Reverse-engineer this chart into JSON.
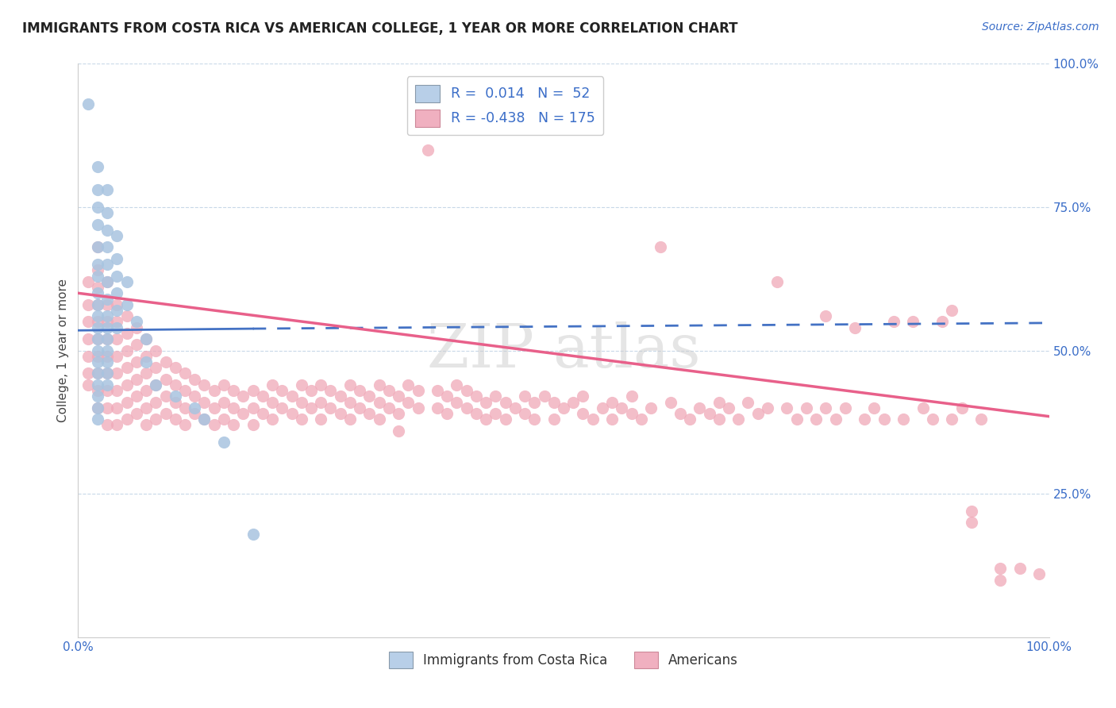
{
  "title": "IMMIGRANTS FROM COSTA RICA VS AMERICAN COLLEGE, 1 YEAR OR MORE CORRELATION CHART",
  "source_text": "Source: ZipAtlas.com",
  "ylabel": "College, 1 year or more",
  "xlim": [
    0.0,
    1.0
  ],
  "ylim": [
    0.0,
    1.0
  ],
  "watermark_text": "ZIPatlas",
  "blue_color": "#a8c4e0",
  "pink_color": "#f0a8b8",
  "blue_line_color": "#4472c4",
  "pink_line_color": "#e8608a",
  "grid_color": "#c8d8e8",
  "background_color": "#ffffff",
  "blue_points": [
    [
      0.01,
      0.93
    ],
    [
      0.02,
      0.82
    ],
    [
      0.02,
      0.78
    ],
    [
      0.02,
      0.75
    ],
    [
      0.02,
      0.72
    ],
    [
      0.02,
      0.68
    ],
    [
      0.02,
      0.65
    ],
    [
      0.02,
      0.63
    ],
    [
      0.02,
      0.6
    ],
    [
      0.02,
      0.58
    ],
    [
      0.02,
      0.56
    ],
    [
      0.02,
      0.54
    ],
    [
      0.02,
      0.52
    ],
    [
      0.02,
      0.5
    ],
    [
      0.02,
      0.48
    ],
    [
      0.02,
      0.46
    ],
    [
      0.02,
      0.44
    ],
    [
      0.02,
      0.42
    ],
    [
      0.02,
      0.4
    ],
    [
      0.02,
      0.38
    ],
    [
      0.03,
      0.78
    ],
    [
      0.03,
      0.74
    ],
    [
      0.03,
      0.71
    ],
    [
      0.03,
      0.68
    ],
    [
      0.03,
      0.65
    ],
    [
      0.03,
      0.62
    ],
    [
      0.03,
      0.59
    ],
    [
      0.03,
      0.56
    ],
    [
      0.03,
      0.54
    ],
    [
      0.03,
      0.52
    ],
    [
      0.03,
      0.5
    ],
    [
      0.03,
      0.48
    ],
    [
      0.03,
      0.46
    ],
    [
      0.03,
      0.44
    ],
    [
      0.04,
      0.7
    ],
    [
      0.04,
      0.66
    ],
    [
      0.04,
      0.63
    ],
    [
      0.04,
      0.6
    ],
    [
      0.04,
      0.57
    ],
    [
      0.04,
      0.54
    ],
    [
      0.05,
      0.62
    ],
    [
      0.05,
      0.58
    ],
    [
      0.06,
      0.55
    ],
    [
      0.07,
      0.52
    ],
    [
      0.07,
      0.48
    ],
    [
      0.08,
      0.44
    ],
    [
      0.1,
      0.42
    ],
    [
      0.12,
      0.4
    ],
    [
      0.13,
      0.38
    ],
    [
      0.15,
      0.34
    ],
    [
      0.18,
      0.18
    ]
  ],
  "pink_points": [
    [
      0.01,
      0.62
    ],
    [
      0.01,
      0.58
    ],
    [
      0.01,
      0.55
    ],
    [
      0.01,
      0.52
    ],
    [
      0.01,
      0.49
    ],
    [
      0.01,
      0.46
    ],
    [
      0.01,
      0.44
    ],
    [
      0.02,
      0.68
    ],
    [
      0.02,
      0.64
    ],
    [
      0.02,
      0.61
    ],
    [
      0.02,
      0.58
    ],
    [
      0.02,
      0.55
    ],
    [
      0.02,
      0.52
    ],
    [
      0.02,
      0.49
    ],
    [
      0.02,
      0.46
    ],
    [
      0.02,
      0.43
    ],
    [
      0.02,
      0.4
    ],
    [
      0.03,
      0.62
    ],
    [
      0.03,
      0.58
    ],
    [
      0.03,
      0.55
    ],
    [
      0.03,
      0.52
    ],
    [
      0.03,
      0.49
    ],
    [
      0.03,
      0.46
    ],
    [
      0.03,
      0.43
    ],
    [
      0.03,
      0.4
    ],
    [
      0.03,
      0.37
    ],
    [
      0.04,
      0.58
    ],
    [
      0.04,
      0.55
    ],
    [
      0.04,
      0.52
    ],
    [
      0.04,
      0.49
    ],
    [
      0.04,
      0.46
    ],
    [
      0.04,
      0.43
    ],
    [
      0.04,
      0.4
    ],
    [
      0.04,
      0.37
    ],
    [
      0.05,
      0.56
    ],
    [
      0.05,
      0.53
    ],
    [
      0.05,
      0.5
    ],
    [
      0.05,
      0.47
    ],
    [
      0.05,
      0.44
    ],
    [
      0.05,
      0.41
    ],
    [
      0.05,
      0.38
    ],
    [
      0.06,
      0.54
    ],
    [
      0.06,
      0.51
    ],
    [
      0.06,
      0.48
    ],
    [
      0.06,
      0.45
    ],
    [
      0.06,
      0.42
    ],
    [
      0.06,
      0.39
    ],
    [
      0.07,
      0.52
    ],
    [
      0.07,
      0.49
    ],
    [
      0.07,
      0.46
    ],
    [
      0.07,
      0.43
    ],
    [
      0.07,
      0.4
    ],
    [
      0.07,
      0.37
    ],
    [
      0.08,
      0.5
    ],
    [
      0.08,
      0.47
    ],
    [
      0.08,
      0.44
    ],
    [
      0.08,
      0.41
    ],
    [
      0.08,
      0.38
    ],
    [
      0.09,
      0.48
    ],
    [
      0.09,
      0.45
    ],
    [
      0.09,
      0.42
    ],
    [
      0.09,
      0.39
    ],
    [
      0.1,
      0.47
    ],
    [
      0.1,
      0.44
    ],
    [
      0.1,
      0.41
    ],
    [
      0.1,
      0.38
    ],
    [
      0.11,
      0.46
    ],
    [
      0.11,
      0.43
    ],
    [
      0.11,
      0.4
    ],
    [
      0.11,
      0.37
    ],
    [
      0.12,
      0.45
    ],
    [
      0.12,
      0.42
    ],
    [
      0.12,
      0.39
    ],
    [
      0.13,
      0.44
    ],
    [
      0.13,
      0.41
    ],
    [
      0.13,
      0.38
    ],
    [
      0.14,
      0.43
    ],
    [
      0.14,
      0.4
    ],
    [
      0.14,
      0.37
    ],
    [
      0.15,
      0.44
    ],
    [
      0.15,
      0.41
    ],
    [
      0.15,
      0.38
    ],
    [
      0.16,
      0.43
    ],
    [
      0.16,
      0.4
    ],
    [
      0.16,
      0.37
    ],
    [
      0.17,
      0.42
    ],
    [
      0.17,
      0.39
    ],
    [
      0.18,
      0.43
    ],
    [
      0.18,
      0.4
    ],
    [
      0.18,
      0.37
    ],
    [
      0.19,
      0.42
    ],
    [
      0.19,
      0.39
    ],
    [
      0.2,
      0.44
    ],
    [
      0.2,
      0.41
    ],
    [
      0.2,
      0.38
    ],
    [
      0.21,
      0.43
    ],
    [
      0.21,
      0.4
    ],
    [
      0.22,
      0.42
    ],
    [
      0.22,
      0.39
    ],
    [
      0.23,
      0.44
    ],
    [
      0.23,
      0.41
    ],
    [
      0.23,
      0.38
    ],
    [
      0.24,
      0.43
    ],
    [
      0.24,
      0.4
    ],
    [
      0.25,
      0.44
    ],
    [
      0.25,
      0.41
    ],
    [
      0.25,
      0.38
    ],
    [
      0.26,
      0.43
    ],
    [
      0.26,
      0.4
    ],
    [
      0.27,
      0.42
    ],
    [
      0.27,
      0.39
    ],
    [
      0.28,
      0.44
    ],
    [
      0.28,
      0.41
    ],
    [
      0.28,
      0.38
    ],
    [
      0.29,
      0.43
    ],
    [
      0.29,
      0.4
    ],
    [
      0.3,
      0.42
    ],
    [
      0.3,
      0.39
    ],
    [
      0.31,
      0.44
    ],
    [
      0.31,
      0.41
    ],
    [
      0.31,
      0.38
    ],
    [
      0.32,
      0.43
    ],
    [
      0.32,
      0.4
    ],
    [
      0.33,
      0.42
    ],
    [
      0.33,
      0.39
    ],
    [
      0.33,
      0.36
    ],
    [
      0.34,
      0.44
    ],
    [
      0.34,
      0.41
    ],
    [
      0.35,
      0.43
    ],
    [
      0.35,
      0.4
    ],
    [
      0.36,
      0.85
    ],
    [
      0.37,
      0.43
    ],
    [
      0.37,
      0.4
    ],
    [
      0.38,
      0.42
    ],
    [
      0.38,
      0.39
    ],
    [
      0.39,
      0.44
    ],
    [
      0.39,
      0.41
    ],
    [
      0.4,
      0.43
    ],
    [
      0.4,
      0.4
    ],
    [
      0.41,
      0.42
    ],
    [
      0.41,
      0.39
    ],
    [
      0.42,
      0.41
    ],
    [
      0.42,
      0.38
    ],
    [
      0.43,
      0.42
    ],
    [
      0.43,
      0.39
    ],
    [
      0.44,
      0.41
    ],
    [
      0.44,
      0.38
    ],
    [
      0.45,
      0.4
    ],
    [
      0.46,
      0.42
    ],
    [
      0.46,
      0.39
    ],
    [
      0.47,
      0.41
    ],
    [
      0.47,
      0.38
    ],
    [
      0.48,
      0.42
    ],
    [
      0.49,
      0.41
    ],
    [
      0.49,
      0.38
    ],
    [
      0.5,
      0.4
    ],
    [
      0.51,
      0.41
    ],
    [
      0.52,
      0.42
    ],
    [
      0.52,
      0.39
    ],
    [
      0.53,
      0.38
    ],
    [
      0.54,
      0.4
    ],
    [
      0.55,
      0.41
    ],
    [
      0.55,
      0.38
    ],
    [
      0.56,
      0.4
    ],
    [
      0.57,
      0.42
    ],
    [
      0.57,
      0.39
    ],
    [
      0.58,
      0.38
    ],
    [
      0.59,
      0.4
    ],
    [
      0.6,
      0.68
    ],
    [
      0.61,
      0.41
    ],
    [
      0.62,
      0.39
    ],
    [
      0.63,
      0.38
    ],
    [
      0.64,
      0.4
    ],
    [
      0.65,
      0.39
    ],
    [
      0.66,
      0.41
    ],
    [
      0.66,
      0.38
    ],
    [
      0.67,
      0.4
    ],
    [
      0.68,
      0.38
    ],
    [
      0.69,
      0.41
    ],
    [
      0.7,
      0.39
    ],
    [
      0.71,
      0.4
    ],
    [
      0.72,
      0.62
    ],
    [
      0.73,
      0.4
    ],
    [
      0.74,
      0.38
    ],
    [
      0.75,
      0.4
    ],
    [
      0.76,
      0.38
    ],
    [
      0.77,
      0.56
    ],
    [
      0.77,
      0.4
    ],
    [
      0.78,
      0.38
    ],
    [
      0.79,
      0.4
    ],
    [
      0.8,
      0.54
    ],
    [
      0.81,
      0.38
    ],
    [
      0.82,
      0.4
    ],
    [
      0.83,
      0.38
    ],
    [
      0.84,
      0.55
    ],
    [
      0.85,
      0.38
    ],
    [
      0.86,
      0.55
    ],
    [
      0.87,
      0.4
    ],
    [
      0.88,
      0.38
    ],
    [
      0.89,
      0.55
    ],
    [
      0.9,
      0.57
    ],
    [
      0.9,
      0.38
    ],
    [
      0.91,
      0.4
    ],
    [
      0.92,
      0.22
    ],
    [
      0.92,
      0.2
    ],
    [
      0.93,
      0.38
    ],
    [
      0.95,
      0.12
    ],
    [
      0.95,
      0.1
    ],
    [
      0.97,
      0.12
    ],
    [
      0.99,
      0.11
    ]
  ],
  "blue_trend_solid": {
    "x_start": 0.0,
    "y_start": 0.535,
    "x_end": 0.18,
    "y_end": 0.538
  },
  "blue_trend_dashed": {
    "x_start": 0.18,
    "y_start": 0.538,
    "x_end": 1.0,
    "y_end": 0.548
  },
  "pink_trend": {
    "x_start": 0.0,
    "y_start": 0.6,
    "x_end": 1.0,
    "y_end": 0.385
  }
}
